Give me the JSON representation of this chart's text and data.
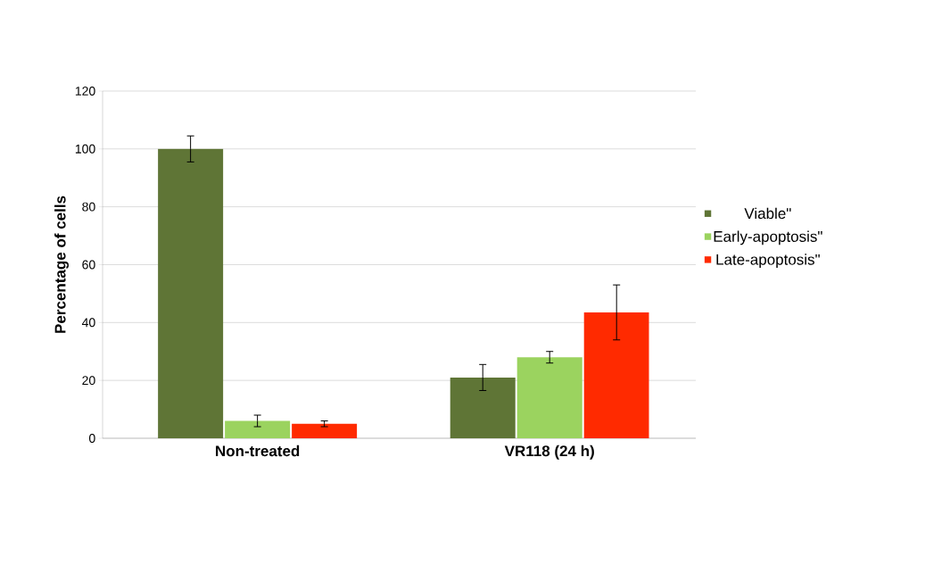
{
  "chart_data": {
    "type": "bar",
    "ylabel": "Percentage of cells",
    "categories": [
      "Non-treated",
      "VR118 (24 h)"
    ],
    "series": [
      {
        "name": "Viable\"",
        "color": "#5f7536",
        "values": [
          100,
          21
        ],
        "errors": [
          4.5,
          4.5
        ]
      },
      {
        "name": "Early-apoptosis\"",
        "color": "#9bd35f",
        "values": [
          6,
          28
        ],
        "errors": [
          2,
          2
        ]
      },
      {
        "name": "Late-apoptosis\"",
        "color": "#ff2a00",
        "values": [
          5,
          43.5
        ],
        "errors": [
          1,
          9.5
        ]
      }
    ],
    "ylim": [
      0,
      120
    ],
    "yticks": [
      0,
      20,
      40,
      60,
      80,
      100,
      120
    ],
    "grid": "y",
    "legend": "right"
  }
}
